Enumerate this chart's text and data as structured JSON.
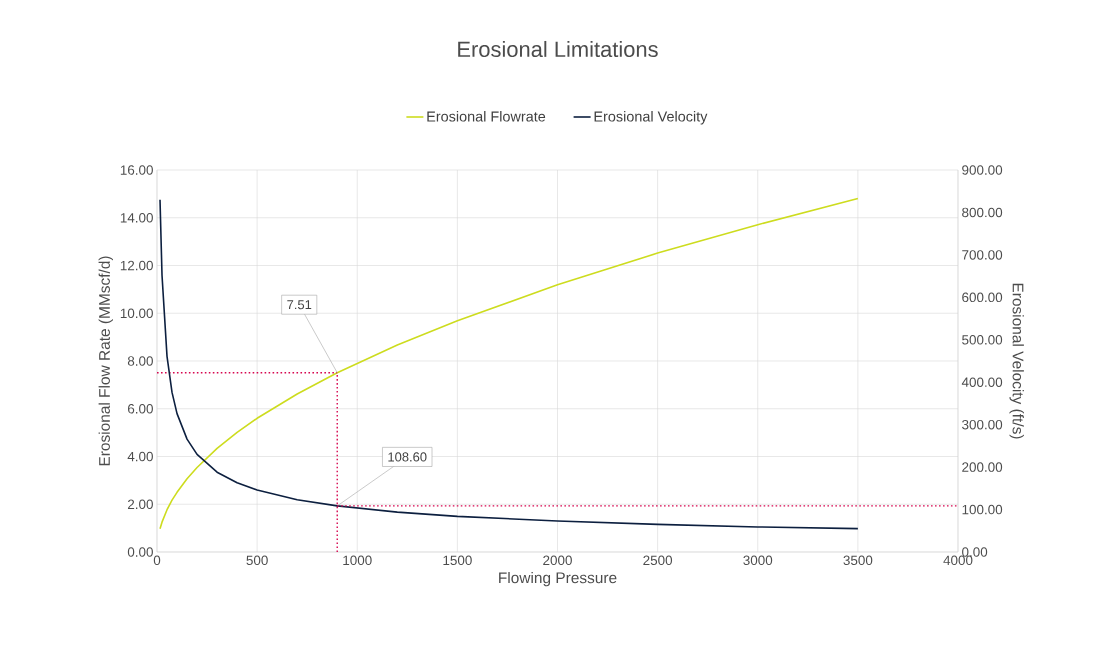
{
  "chart_data": {
    "type": "line",
    "title": "Erosional Limitations",
    "xlabel": "Flowing Pressure",
    "ylabel": "Erosional  Flow Rate (MMscf/d)",
    "y2label": "Erosional Velocity (ft/s)",
    "series": [
      {
        "name": "Erosional Flowrate",
        "color": "#cddc1e",
        "x": [
          15,
          25,
          50,
          75,
          100,
          150,
          200,
          300,
          400,
          500,
          700,
          900,
          1200,
          1500,
          2000,
          2500,
          3000,
          3500
        ],
        "values": [
          0.97,
          1.25,
          1.77,
          2.17,
          2.5,
          3.07,
          3.54,
          4.34,
          5.01,
          5.6,
          6.62,
          7.51,
          8.67,
          9.69,
          11.19,
          12.52,
          13.71,
          14.81
        ]
      },
      {
        "name": "Erosional Velocity",
        "color": "#0c1f3f",
        "axis": "y2",
        "x": [
          15,
          25,
          50,
          75,
          100,
          150,
          200,
          300,
          400,
          500,
          700,
          900,
          1200,
          1500,
          2000,
          2500,
          3000,
          3500
        ],
        "values": [
          830,
          652,
          461,
          376,
          326,
          266,
          230,
          188,
          163,
          146,
          123,
          108.6,
          94,
          84,
          73,
          65,
          59,
          55
        ]
      },
      {
        "color": "#d6064f",
        "line_style": "dotted",
        "x": [
          0,
          900
        ],
        "values": [
          7.51,
          7.51
        ]
      },
      {
        "color": "#d6064f",
        "line_style": "dotted",
        "x": [
          900,
          900
        ],
        "values": [
          0,
          7.51
        ]
      },
      {
        "color": "#d6064f",
        "line_style": "dotted",
        "axis": "y2",
        "x": [
          900,
          4000
        ],
        "values": [
          108.6,
          108.6
        ]
      }
    ],
    "annotations": [
      {
        "text": "7.51",
        "x": 900,
        "y": 7.51
      },
      {
        "text": "108.60",
        "x": 900,
        "y": 1.93
      }
    ],
    "xlim": [
      0,
      4000
    ],
    "xticks": [
      0,
      500,
      1000,
      1500,
      2000,
      2500,
      3000,
      3500,
      4000
    ],
    "ylim": [
      0,
      16
    ],
    "yticks": [
      {
        "value": 0,
        "label": "0.00"
      },
      {
        "value": 2,
        "label": "2.00"
      },
      {
        "value": 4,
        "label": "4.00"
      },
      {
        "value": 6,
        "label": "6.00"
      },
      {
        "value": 8,
        "label": "8.00"
      },
      {
        "value": 10,
        "label": "10.00"
      },
      {
        "value": 12,
        "label": "12.00"
      },
      {
        "value": 14,
        "label": "14.00"
      },
      {
        "value": 16,
        "label": "16.00"
      }
    ],
    "y2lim": [
      0,
      900
    ],
    "y2ticks": [
      {
        "value": 0,
        "label": "0.00"
      },
      {
        "value": 100,
        "label": "100.00"
      },
      {
        "value": 200,
        "label": "200.00"
      },
      {
        "value": 300,
        "label": "300.00"
      },
      {
        "value": 400,
        "label": "400.00"
      },
      {
        "value": 500,
        "label": "500.00"
      },
      {
        "value": 600,
        "label": "600.00"
      },
      {
        "value": 700,
        "label": "700.00"
      },
      {
        "value": 800,
        "label": "800.00"
      },
      {
        "value": 900,
        "label": "900.00"
      }
    ],
    "grid": true,
    "legend": "top",
    "marker": "none"
  }
}
